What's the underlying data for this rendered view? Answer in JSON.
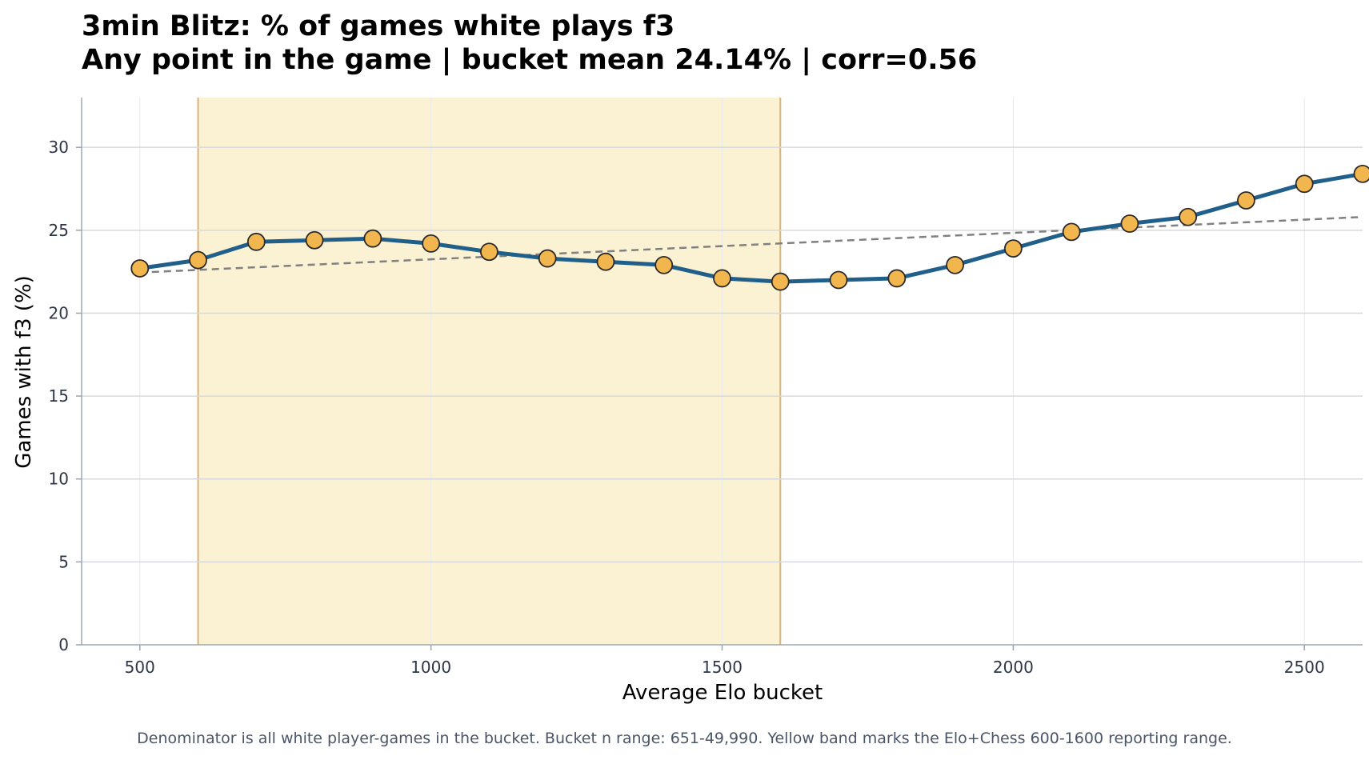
{
  "chart_data": {
    "type": "line",
    "title": "3min Blitz: % of games white plays f3",
    "subtitle": "Any point in the game | bucket mean 24.14% | corr=0.56",
    "xlabel": "Average Elo bucket",
    "ylabel": "Games with f3 (%)",
    "xlim": [
      400,
      2600
    ],
    "ylim": [
      0,
      33
    ],
    "x_ticks": [
      500,
      1000,
      1500,
      2000,
      2500
    ],
    "y_ticks": [
      0,
      5,
      10,
      15,
      20,
      25,
      30
    ],
    "grid": true,
    "highlight_band": {
      "x_start": 600,
      "x_end": 1600,
      "color": "#fbf1d3"
    },
    "series": [
      {
        "x": [
          500,
          600,
          700,
          800,
          900,
          1000,
          1100,
          1200,
          1300,
          1400,
          1500,
          1600,
          1700,
          1800,
          1900,
          2000,
          2100,
          2200,
          2300,
          2400,
          2500,
          2600
        ],
        "values": [
          22.7,
          23.2,
          24.3,
          24.4,
          24.5,
          24.2,
          23.7,
          23.3,
          23.1,
          22.9,
          22.1,
          21.9,
          22.0,
          22.1,
          22.9,
          23.9,
          24.9,
          25.4,
          25.8,
          26.8,
          27.8,
          28.4
        ],
        "line_color": "#215f8b",
        "marker_color": "#f2b64f"
      }
    ],
    "trend_line": {
      "x": [
        500,
        2600
      ],
      "y": [
        22.45,
        25.8
      ],
      "color": "#808080",
      "style": "dashed"
    },
    "footnote": "Denominator is all white player-games in the bucket. Bucket n range: 651-49,990. Yellow band marks the Elo+Chess 600-1600 reporting range."
  }
}
